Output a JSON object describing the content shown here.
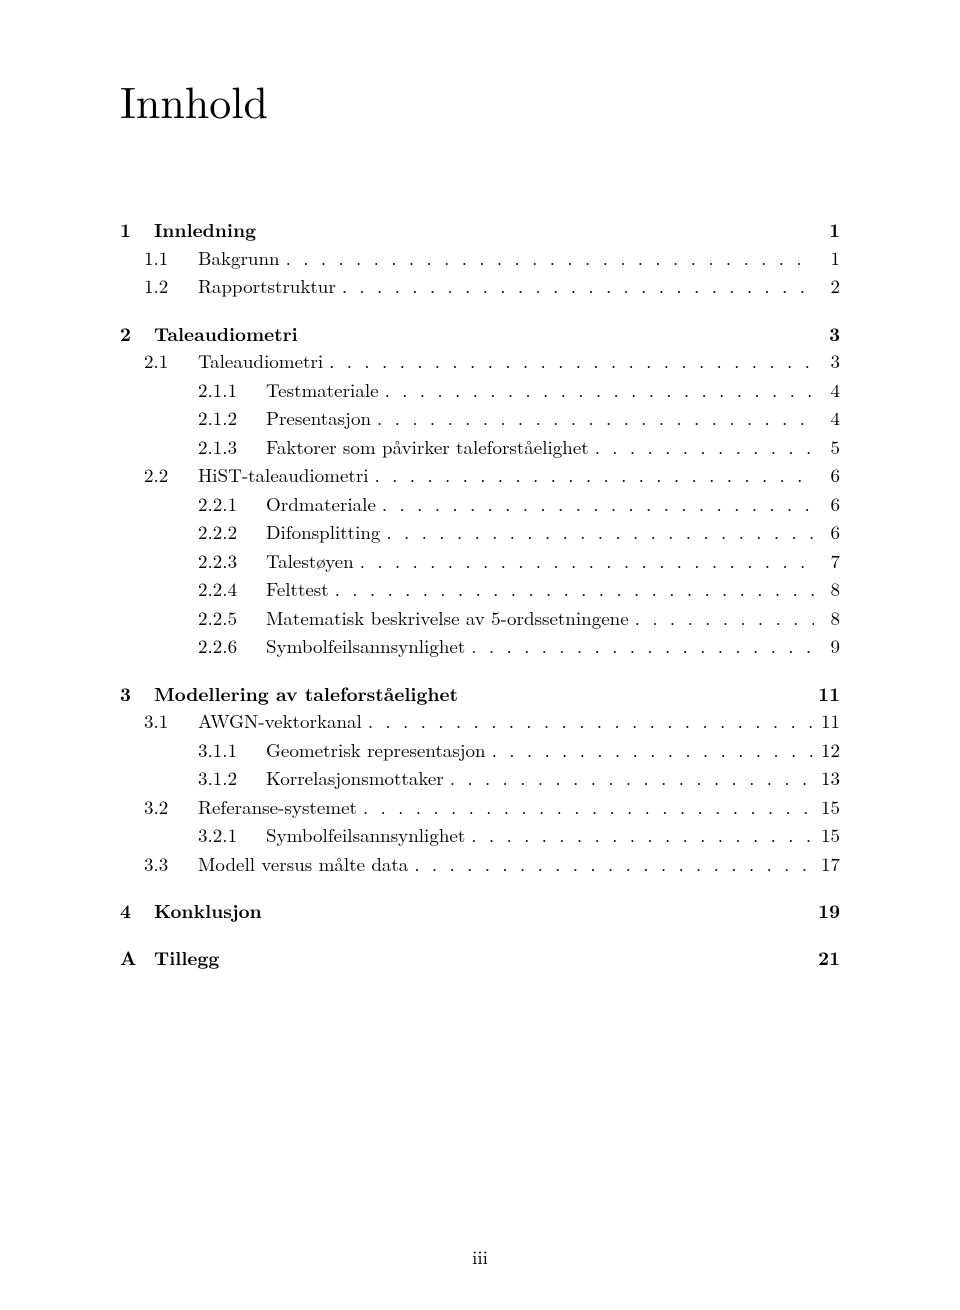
{
  "title": "Innhold",
  "folio": "iii",
  "colors": {
    "text": "#000000",
    "background": "#ffffff"
  },
  "typography": {
    "title_fontsize_pt": 25,
    "body_fontsize_pt": 11,
    "font_family": "Computer Modern / Latin Modern (LaTeX default)"
  },
  "toc": [
    {
      "level": 1,
      "num": "1",
      "label": "Innledning",
      "page": "1",
      "leader": false
    },
    {
      "level": 2,
      "num": "1.1",
      "label": "Bakgrunn",
      "page": "1",
      "leader": true
    },
    {
      "level": 2,
      "num": "1.2",
      "label": "Rapportstruktur",
      "page": "2",
      "leader": true
    },
    {
      "level": 1,
      "num": "2",
      "label": "Taleaudiometri",
      "page": "3",
      "leader": false
    },
    {
      "level": 2,
      "num": "2.1",
      "label": "Taleaudiometri",
      "page": "3",
      "leader": true
    },
    {
      "level": 3,
      "num": "2.1.1",
      "label": "Testmateriale",
      "page": "4",
      "leader": true
    },
    {
      "level": 3,
      "num": "2.1.2",
      "label": "Presentasjon",
      "page": "4",
      "leader": true
    },
    {
      "level": 3,
      "num": "2.1.3",
      "label": "Faktorer som påvirker taleforståelighet",
      "page": "5",
      "leader": true
    },
    {
      "level": 2,
      "num": "2.2",
      "label": "HiST-taleaudiometri",
      "page": "6",
      "leader": true
    },
    {
      "level": 3,
      "num": "2.2.1",
      "label": "Ordmateriale",
      "page": "6",
      "leader": true
    },
    {
      "level": 3,
      "num": "2.2.2",
      "label": "Difonsplitting",
      "page": "6",
      "leader": true
    },
    {
      "level": 3,
      "num": "2.2.3",
      "label": "Talestøyen",
      "page": "7",
      "leader": true
    },
    {
      "level": 3,
      "num": "2.2.4",
      "label": "Felttest",
      "page": "8",
      "leader": true
    },
    {
      "level": 3,
      "num": "2.2.5",
      "label": "Matematisk beskrivelse av 5-ordssetningene",
      "page": "8",
      "leader": true
    },
    {
      "level": 3,
      "num": "2.2.6",
      "label": "Symbolfeilsannsynlighet",
      "page": "9",
      "leader": true
    },
    {
      "level": 1,
      "num": "3",
      "label": "Modellering av taleforståelighet",
      "page": "11",
      "leader": false
    },
    {
      "level": 2,
      "num": "3.1",
      "label": "AWGN-vektorkanal",
      "page": "11",
      "leader": true
    },
    {
      "level": 3,
      "num": "3.1.1",
      "label": "Geometrisk representasjon",
      "page": "12",
      "leader": true
    },
    {
      "level": 3,
      "num": "3.1.2",
      "label": "Korrelasjonsmottaker",
      "page": "13",
      "leader": true
    },
    {
      "level": 2,
      "num": "3.2",
      "label": "Referanse-systemet",
      "page": "15",
      "leader": true
    },
    {
      "level": 3,
      "num": "3.2.1",
      "label": "Symbolfeilsannsynlighet",
      "page": "15",
      "leader": true
    },
    {
      "level": 2,
      "num": "3.3",
      "label": "Modell versus målte data",
      "page": "17",
      "leader": true
    },
    {
      "level": 1,
      "num": "4",
      "label": "Konklusjon",
      "page": "19",
      "leader": false
    },
    {
      "level": 1,
      "num": "A",
      "label": "Tillegg",
      "page": "21",
      "leader": false
    }
  ]
}
